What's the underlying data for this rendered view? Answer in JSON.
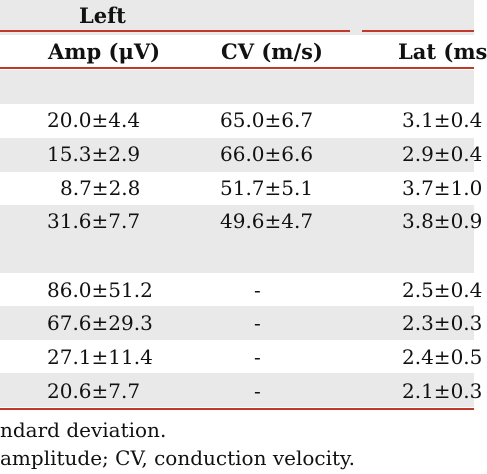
{
  "header": {
    "group_label": "Left",
    "col_amp": "Amp (μV)",
    "col_cv": "CV (m/s)",
    "col_lat": "Lat (ms"
  },
  "rows": [
    {
      "amp": "20.0±4.4",
      "cv": "65.0±6.7",
      "lat": "3.1±0.4"
    },
    {
      "amp": "15.3±2.9",
      "cv": "66.0±6.6",
      "lat": "2.9±0.4"
    },
    {
      "amp": "8.7±2.8",
      "cv": "51.7±5.1",
      "lat": "3.7±1.0"
    },
    {
      "amp": "31.6±7.7",
      "cv": "49.6±4.7",
      "lat": "3.8±0.9"
    },
    {
      "amp": "86.0±51.2",
      "cv": "-",
      "lat": "2.5±0.4"
    },
    {
      "amp": "67.6±29.3",
      "cv": "-",
      "lat": "2.3±0.3"
    },
    {
      "amp": "27.1±11.4",
      "cv": "-",
      "lat": "2.4±0.5"
    },
    {
      "amp": "20.6±7.7",
      "cv": "-",
      "lat": "2.1±0.3"
    }
  ],
  "footnotes": {
    "line1": "ndard deviation.",
    "line2": "amplitude; CV, conduction velocity."
  },
  "colors": {
    "rule": "#c0392b",
    "band": "#e9e9e9"
  }
}
